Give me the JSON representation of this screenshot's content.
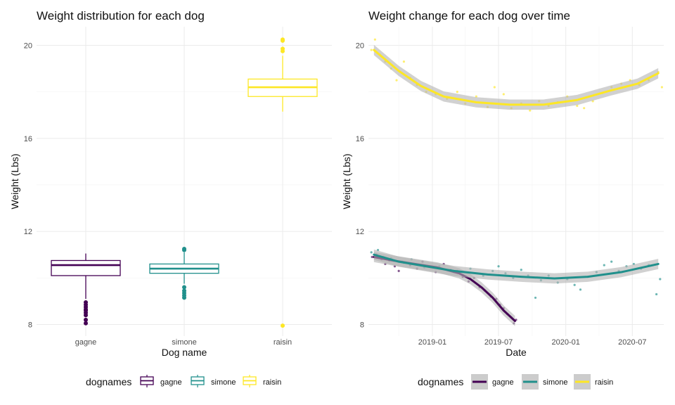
{
  "legend_title": "dognames",
  "legend_items": [
    "gagne",
    "simone",
    "raisin"
  ],
  "colors": {
    "gagne": "#440154",
    "simone": "#21908C",
    "raisin": "#FDE725",
    "ribbon": "#b3b3b3"
  },
  "chart_data": [
    {
      "type": "box",
      "title": "Weight distribution for each dog",
      "xlabel": "Dog name",
      "ylabel": "Weight (Lbs)",
      "ylim": [
        7.5,
        20.8
      ],
      "yticks": [
        8,
        12,
        16,
        20
      ],
      "categories": [
        "gagne",
        "simone",
        "raisin"
      ],
      "boxes": [
        {
          "name": "gagne",
          "whisker_low": 9.1,
          "q1": 10.1,
          "median": 10.55,
          "q3": 10.75,
          "whisker_high": 11.05,
          "outliers": [
            8.05,
            8.2,
            8.4,
            8.5,
            8.6,
            8.65,
            8.75,
            8.85,
            8.95
          ]
        },
        {
          "name": "simone",
          "whisker_low": 9.75,
          "q1": 10.2,
          "median": 10.4,
          "q3": 10.6,
          "whisker_high": 11.1,
          "outliers": [
            9.15,
            9.25,
            9.35,
            9.45,
            9.6,
            11.2,
            11.25
          ]
        },
        {
          "name": "raisin",
          "whisker_low": 17.15,
          "q1": 17.8,
          "median": 18.2,
          "q3": 18.55,
          "whisker_high": 19.55,
          "outliers": [
            7.95,
            19.75,
            19.85,
            20.2,
            20.25
          ]
        }
      ]
    },
    {
      "type": "scatter",
      "title": "Weight change for each dog over time",
      "xlabel": "Date",
      "ylabel": "Weight (Lbs)",
      "ylim": [
        7.5,
        20.8
      ],
      "yticks": [
        8,
        12,
        16,
        20
      ],
      "xlim": [
        "2018-07-10",
        "2020-09-25"
      ],
      "xticks": [
        "2019-01",
        "2019-07",
        "2020-01",
        "2020-07"
      ],
      "series": [
        {
          "name": "gagne",
          "smooth": [
            [
              "2018-07-25",
              10.9
            ],
            [
              "2018-09-15",
              10.75
            ],
            [
              "2018-11-15",
              10.6
            ],
            [
              "2019-01-15",
              10.45
            ],
            [
              "2019-03-15",
              10.2
            ],
            [
              "2019-04-15",
              9.95
            ],
            [
              "2019-05-15",
              9.6
            ],
            [
              "2019-06-15",
              9.15
            ],
            [
              "2019-07-15",
              8.6
            ],
            [
              "2019-08-15",
              8.15
            ]
          ],
          "points": [
            [
              "2018-07-20",
              10.9
            ],
            [
              "2018-08-01",
              11.0
            ],
            [
              "2018-08-15",
              10.8
            ],
            [
              "2018-08-25",
              10.6
            ],
            [
              "2018-09-05",
              10.75
            ],
            [
              "2018-09-20",
              10.5
            ],
            [
              "2018-10-01",
              10.3
            ],
            [
              "2018-10-15",
              10.65
            ],
            [
              "2018-11-01",
              10.55
            ],
            [
              "2018-11-20",
              10.4
            ],
            [
              "2018-12-05",
              10.7
            ],
            [
              "2018-12-20",
              10.5
            ],
            [
              "2019-01-10",
              10.25
            ],
            [
              "2019-02-01",
              10.6
            ],
            [
              "2019-02-20",
              10.35
            ],
            [
              "2019-03-10",
              10.3
            ],
            [
              "2019-03-25",
              10.05
            ],
            [
              "2019-04-10",
              9.85
            ],
            [
              "2019-04-25",
              10.0
            ],
            [
              "2019-05-10",
              9.6
            ],
            [
              "2019-05-25",
              9.45
            ],
            [
              "2019-06-10",
              9.2
            ],
            [
              "2019-06-25",
              9.1
            ],
            [
              "2019-07-05",
              8.85
            ],
            [
              "2019-07-15",
              8.7
            ],
            [
              "2019-07-25",
              8.45
            ],
            [
              "2019-08-05",
              8.3
            ],
            [
              "2019-08-12",
              8.05
            ],
            [
              "2019-08-18",
              8.2
            ]
          ]
        },
        {
          "name": "simone",
          "smooth": [
            [
              "2018-07-25",
              11.0
            ],
            [
              "2018-10-01",
              10.7
            ],
            [
              "2018-12-15",
              10.5
            ],
            [
              "2019-03-01",
              10.3
            ],
            [
              "2019-06-01",
              10.15
            ],
            [
              "2019-09-01",
              10.05
            ],
            [
              "2019-12-01",
              9.98
            ],
            [
              "2020-03-01",
              10.05
            ],
            [
              "2020-06-01",
              10.25
            ],
            [
              "2020-09-10",
              10.6
            ]
          ],
          "points": [
            [
              "2018-07-18",
              11.1
            ],
            [
              "2018-08-05",
              11.2
            ],
            [
              "2018-08-20",
              10.9
            ],
            [
              "2018-09-10",
              10.85
            ],
            [
              "2018-10-10",
              10.7
            ],
            [
              "2018-11-05",
              10.8
            ],
            [
              "2018-12-10",
              10.45
            ],
            [
              "2019-01-20",
              10.5
            ],
            [
              "2019-03-01",
              10.25
            ],
            [
              "2019-04-15",
              10.4
            ],
            [
              "2019-05-20",
              10.1
            ],
            [
              "2019-06-15",
              10.3
            ],
            [
              "2019-07-01",
              10.5
            ],
            [
              "2019-07-20",
              10.2
            ],
            [
              "2019-08-10",
              10.0
            ],
            [
              "2019-09-01",
              10.35
            ],
            [
              "2019-09-20",
              10.1
            ],
            [
              "2019-10-10",
              9.15
            ],
            [
              "2019-10-25",
              9.9
            ],
            [
              "2019-11-15",
              10.1
            ],
            [
              "2019-12-10",
              9.8
            ],
            [
              "2020-01-05",
              9.95
            ],
            [
              "2020-01-25",
              9.7
            ],
            [
              "2020-02-10",
              9.5
            ],
            [
              "2020-03-01",
              10.05
            ],
            [
              "2020-03-25",
              10.25
            ],
            [
              "2020-04-15",
              10.55
            ],
            [
              "2020-05-05",
              10.7
            ],
            [
              "2020-05-25",
              10.3
            ],
            [
              "2020-06-15",
              10.5
            ],
            [
              "2020-07-05",
              10.6
            ],
            [
              "2020-07-25",
              10.4
            ],
            [
              "2020-08-15",
              10.55
            ],
            [
              "2020-09-05",
              9.3
            ],
            [
              "2020-09-15",
              9.95
            ]
          ]
        },
        {
          "name": "raisin",
          "smooth": [
            [
              "2018-07-25",
              19.8
            ],
            [
              "2018-10-01",
              18.9
            ],
            [
              "2018-12-01",
              18.25
            ],
            [
              "2019-02-01",
              17.8
            ],
            [
              "2019-05-01",
              17.55
            ],
            [
              "2019-08-01",
              17.45
            ],
            [
              "2019-11-01",
              17.45
            ],
            [
              "2020-02-01",
              17.65
            ],
            [
              "2020-05-01",
              18.05
            ],
            [
              "2020-07-15",
              18.35
            ],
            [
              "2020-09-10",
              18.8
            ]
          ],
          "points": [
            [
              "2018-07-18",
              19.8
            ],
            [
              "2018-07-28",
              20.25
            ],
            [
              "2018-08-10",
              19.6
            ],
            [
              "2018-08-25",
              19.3
            ],
            [
              "2018-09-10",
              19.0
            ],
            [
              "2018-09-25",
              18.5
            ],
            [
              "2018-10-15",
              19.3
            ],
            [
              "2018-11-01",
              18.6
            ],
            [
              "2018-11-20",
              18.3
            ],
            [
              "2018-12-15",
              18.0
            ],
            [
              "2019-01-10",
              17.9
            ],
            [
              "2019-02-10",
              17.7
            ],
            [
              "2019-03-10",
              18.0
            ],
            [
              "2019-04-01",
              17.5
            ],
            [
              "2019-05-01",
              17.8
            ],
            [
              "2019-06-01",
              17.35
            ],
            [
              "2019-06-20",
              18.2
            ],
            [
              "2019-07-15",
              17.9
            ],
            [
              "2019-08-05",
              17.3
            ],
            [
              "2019-09-01",
              17.5
            ],
            [
              "2019-09-25",
              17.2
            ],
            [
              "2019-10-20",
              17.6
            ],
            [
              "2019-11-15",
              17.4
            ],
            [
              "2019-12-10",
              17.55
            ],
            [
              "2020-01-05",
              17.8
            ],
            [
              "2020-02-01",
              17.4
            ],
            [
              "2020-02-20",
              17.3
            ],
            [
              "2020-03-15",
              17.6
            ],
            [
              "2020-04-10",
              17.95
            ],
            [
              "2020-05-05",
              18.2
            ],
            [
              "2020-06-01",
              18.35
            ],
            [
              "2020-06-25",
              18.5
            ],
            [
              "2020-07-20",
              18.3
            ],
            [
              "2020-08-15",
              18.5
            ],
            [
              "2020-09-10",
              18.85
            ],
            [
              "2020-09-20",
              18.2
            ]
          ]
        }
      ]
    }
  ]
}
